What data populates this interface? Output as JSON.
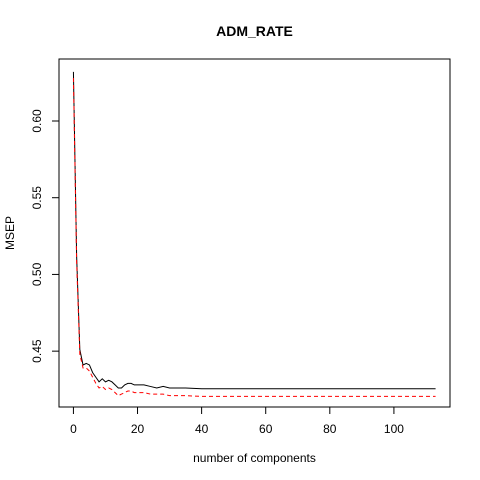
{
  "chart_data": {
    "type": "line",
    "title": "ADM_RATE",
    "xlabel": "number of components",
    "ylabel": "MSEP",
    "xlim": [
      -4.5,
      117.5
    ],
    "ylim": [
      0.4136,
      0.6404
    ],
    "xticks": [
      0,
      20,
      40,
      60,
      80,
      100
    ],
    "yticks": [
      0.45,
      0.5,
      0.55,
      0.6
    ],
    "ytick_labels": [
      "0.45",
      "0.50",
      "0.55",
      "0.60"
    ],
    "grid": false,
    "series": [
      {
        "style": "solid",
        "color": "#000000",
        "x": [
          0,
          1,
          2,
          3,
          4,
          5,
          6,
          7,
          8,
          9,
          10,
          11,
          12,
          13,
          14,
          15,
          16,
          17,
          18,
          19,
          20,
          22,
          24,
          26,
          28,
          30,
          35,
          40,
          50,
          60,
          80,
          100,
          113
        ],
        "y": [
          0.632,
          0.512,
          0.451,
          0.441,
          0.442,
          0.441,
          0.436,
          0.433,
          0.43,
          0.432,
          0.43,
          0.431,
          0.43,
          0.428,
          0.426,
          0.426,
          0.428,
          0.429,
          0.429,
          0.428,
          0.428,
          0.428,
          0.427,
          0.426,
          0.427,
          0.426,
          0.426,
          0.4255,
          0.4255,
          0.4255,
          0.4255,
          0.4255,
          0.4255
        ]
      },
      {
        "style": "dashed",
        "color": "#ff0000",
        "x": [
          0,
          1,
          2,
          3,
          4,
          5,
          6,
          7,
          8,
          9,
          10,
          11,
          12,
          13,
          14,
          15,
          16,
          17,
          18,
          19,
          20,
          22,
          24,
          26,
          28,
          30,
          35,
          40,
          50,
          60,
          80,
          100,
          113
        ],
        "y": [
          0.628,
          0.508,
          0.448,
          0.439,
          0.439,
          0.437,
          0.433,
          0.429,
          0.426,
          0.427,
          0.425,
          0.426,
          0.425,
          0.423,
          0.421,
          0.422,
          0.423,
          0.424,
          0.424,
          0.423,
          0.423,
          0.423,
          0.422,
          0.422,
          0.422,
          0.421,
          0.421,
          0.4205,
          0.4205,
          0.4205,
          0.4205,
          0.4205,
          0.4205
        ]
      }
    ]
  }
}
